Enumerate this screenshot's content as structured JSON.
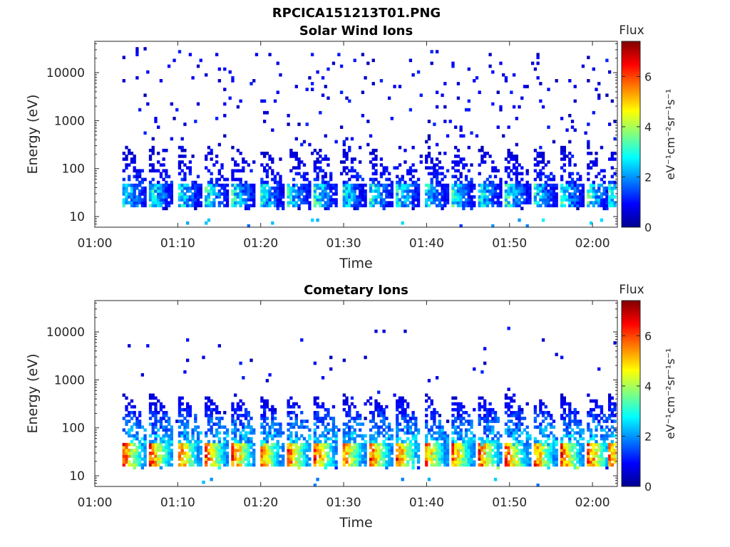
{
  "figure_title": "RPCICA151213T01.PNG",
  "colormap": [
    "#00008f",
    "#0000ff",
    "#0080ff",
    "#00ffff",
    "#80ff80",
    "#ffff00",
    "#ff8000",
    "#ff0000",
    "#800000"
  ],
  "chart_data": [
    {
      "type": "heatmap",
      "title": "Solar Wind Ions",
      "xlabel": "Time",
      "ylabel": "Energy (eV)",
      "x_ticks": [
        "01:00",
        "01:10",
        "01:20",
        "01:30",
        "01:40",
        "01:50",
        "02:00"
      ],
      "x_range_min": [
        0,
        63
      ],
      "y_scale": "log",
      "y_ticks": [
        "10",
        "100",
        "1000",
        "10000"
      ],
      "y_range": [
        6,
        45000
      ],
      "colorbar": {
        "title": "Flux",
        "unit": "eV⁻¹cm⁻²sr⁻¹s⁻¹",
        "ticks": [
          "0",
          "2",
          "4",
          "6"
        ],
        "range": [
          0,
          7.4
        ]
      },
      "data_start_min": 3,
      "burst_times_min": [
        3.5,
        6.8,
        10.1,
        13.4,
        16.7,
        20.0,
        23.3,
        26.6,
        29.9,
        33.2,
        36.5,
        39.8,
        43.1,
        46.4,
        49.7,
        53.0,
        56.3,
        59.6,
        62.0
      ],
      "core_energy_ev": [
        20,
        45
      ],
      "core_flux_max": 3.8,
      "tail_energy_max_ev": 300,
      "background_scatter": "sparse low-flux counts up to ~30000 eV"
    },
    {
      "type": "heatmap",
      "title": "Cometary Ions",
      "xlabel": "Time",
      "ylabel": "Energy (eV)",
      "x_ticks": [
        "01:00",
        "01:10",
        "01:20",
        "01:30",
        "01:40",
        "01:50",
        "02:00"
      ],
      "x_range_min": [
        0,
        63
      ],
      "y_scale": "log",
      "y_ticks": [
        "10",
        "100",
        "1000",
        "10000"
      ],
      "y_range": [
        6,
        45000
      ],
      "colorbar": {
        "title": "Flux",
        "unit": "eV⁻¹cm⁻²sr⁻¹s⁻¹",
        "ticks": [
          "0",
          "2",
          "4",
          "6"
        ],
        "range": [
          0,
          7.4
        ]
      },
      "data_start_min": 3,
      "burst_times_min": [
        3.5,
        6.8,
        10.1,
        13.4,
        16.7,
        20.0,
        23.3,
        26.6,
        29.9,
        33.2,
        36.5,
        39.8,
        43.1,
        46.4,
        49.7,
        53.0,
        56.3,
        59.6,
        62.0
      ],
      "core_energy_ev": [
        20,
        45
      ],
      "core_flux_max": 6.6,
      "tail_energy_max_ev": 500,
      "background_scatter": "sparse low-flux counts up to ~10000 eV"
    }
  ]
}
